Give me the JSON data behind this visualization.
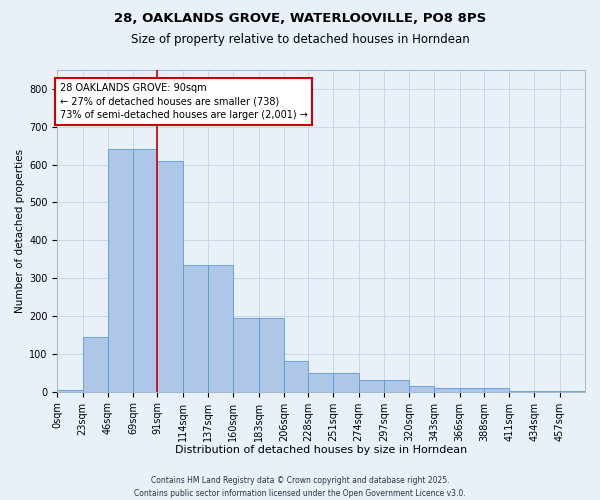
{
  "title_line1": "28, OAKLANDS GROVE, WATERLOOVILLE, PO8 8PS",
  "title_line2": "Size of property relative to detached houses in Horndean",
  "xlabel": "Distribution of detached houses by size in Horndean",
  "ylabel": "Number of detached properties",
  "footnote": "Contains HM Land Registry data © Crown copyright and database right 2025.\nContains public sector information licensed under the Open Government Licence v3.0.",
  "bin_labels": [
    "0sqm",
    "23sqm",
    "46sqm",
    "69sqm",
    "91sqm",
    "114sqm",
    "137sqm",
    "160sqm",
    "183sqm",
    "206sqm",
    "228sqm",
    "251sqm",
    "274sqm",
    "297sqm",
    "320sqm",
    "343sqm",
    "366sqm",
    "388sqm",
    "411sqm",
    "434sqm",
    "457sqm"
  ],
  "bar_values": [
    5,
    145,
    640,
    640,
    610,
    335,
    335,
    195,
    195,
    80,
    50,
    50,
    30,
    30,
    15,
    10,
    10,
    10,
    2,
    2,
    2
  ],
  "bin_edges": [
    0,
    23,
    46,
    69,
    91,
    114,
    137,
    160,
    183,
    206,
    228,
    251,
    274,
    297,
    320,
    343,
    366,
    388,
    411,
    434,
    457,
    480
  ],
  "bar_color": "#aec6e8",
  "bar_edge_color": "#5b9bd5",
  "grid_color": "#c8d8e8",
  "bg_color": "#e8f0f8",
  "vline_x": 91,
  "vline_color": "#cc0000",
  "annotation_text": "28 OAKLANDS GROVE: 90sqm\n← 27% of detached houses are smaller (738)\n73% of semi-detached houses are larger (2,001) →",
  "annotation_box_color": "#ffffff",
  "annotation_box_edge_color": "#cc0000",
  "ylim": [
    0,
    850
  ],
  "yticks": [
    0,
    100,
    200,
    300,
    400,
    500,
    600,
    700,
    800
  ],
  "title1_fontsize": 9.5,
  "title2_fontsize": 8.5,
  "xlabel_fontsize": 8,
  "ylabel_fontsize": 7.5,
  "tick_fontsize": 7,
  "annotation_fontsize": 7,
  "footnote_fontsize": 5.5
}
